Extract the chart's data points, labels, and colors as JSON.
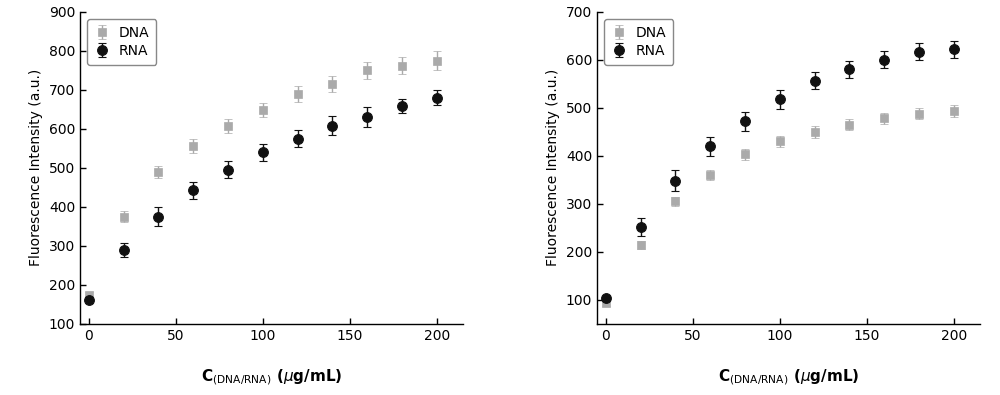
{
  "left": {
    "dna_x": [
      0,
      20,
      40,
      60,
      80,
      100,
      120,
      140,
      160,
      180,
      200
    ],
    "dna_y": [
      175,
      375,
      490,
      555,
      608,
      648,
      690,
      715,
      750,
      762,
      775
    ],
    "dna_yerr": [
      8,
      15,
      15,
      18,
      18,
      18,
      20,
      20,
      22,
      22,
      25
    ],
    "rna_x": [
      0,
      20,
      40,
      60,
      80,
      100,
      120,
      140,
      160,
      180,
      200
    ],
    "rna_y": [
      162,
      290,
      375,
      442,
      495,
      540,
      575,
      608,
      630,
      658,
      680
    ],
    "rna_yerr": [
      8,
      18,
      25,
      22,
      22,
      22,
      22,
      25,
      25,
      18,
      20
    ],
    "ylim": [
      100,
      900
    ],
    "yticks": [
      100,
      200,
      300,
      400,
      500,
      600,
      700,
      800,
      900
    ],
    "xlim": [
      -5,
      215
    ],
    "xticks": [
      0,
      50,
      100,
      150,
      200
    ]
  },
  "right": {
    "dna_x": [
      0,
      20,
      40,
      60,
      80,
      100,
      120,
      140,
      160,
      180,
      200
    ],
    "dna_y": [
      93,
      215,
      305,
      360,
      403,
      430,
      450,
      465,
      478,
      488,
      493
    ],
    "dna_yerr": [
      5,
      8,
      10,
      10,
      12,
      12,
      12,
      12,
      12,
      12,
      12
    ],
    "rna_x": [
      0,
      20,
      40,
      60,
      80,
      100,
      120,
      140,
      160,
      180,
      200
    ],
    "rna_y": [
      104,
      252,
      348,
      420,
      472,
      518,
      557,
      580,
      600,
      617,
      622
    ],
    "rna_yerr": [
      5,
      18,
      22,
      20,
      20,
      20,
      18,
      18,
      18,
      18,
      18
    ],
    "ylim": [
      50,
      700
    ],
    "yticks": [
      100,
      200,
      300,
      400,
      500,
      600,
      700
    ],
    "xlim": [
      -5,
      215
    ],
    "xticks": [
      0,
      50,
      100,
      150,
      200
    ]
  },
  "dna_color": "#aaaaaa",
  "rna_color": "#111111",
  "dna_marker": "s",
  "rna_marker": "o",
  "marker_size": 6,
  "ylabel": "Fluorescence Intensity (a.u.)",
  "legend_dna": "DNA",
  "legend_rna": "RNA",
  "capsize": 3,
  "elinewidth": 1.0,
  "linewidth": 0
}
